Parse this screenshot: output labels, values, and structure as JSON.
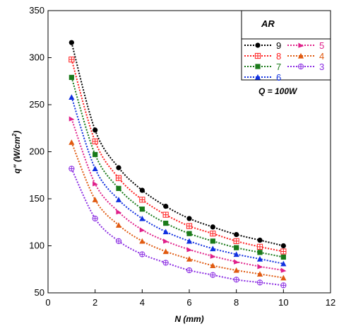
{
  "chart_data": {
    "type": "line",
    "xlabel": "N (mm)",
    "ylabel_main": "q\" (W/cm",
    "ylabel_sup": "2",
    "ylabel_end": ")",
    "xlim": [
      0,
      12
    ],
    "ylim": [
      50,
      350
    ],
    "xticks": [
      "0",
      "2",
      "4",
      "6",
      "8",
      "10",
      "12"
    ],
    "yticks": [
      "50",
      "100",
      "150",
      "200",
      "250",
      "300",
      "350"
    ],
    "grid": false,
    "legend_title": "AR",
    "legend_position": "top-right",
    "annotation": "Q = 100W",
    "x": [
      1,
      2,
      3,
      4,
      5,
      6,
      7,
      8,
      9,
      10
    ],
    "series": [
      {
        "name": "9",
        "color": "#000000",
        "marker": "circle",
        "values": [
          316,
          223,
          183,
          159,
          142,
          129,
          120,
          112,
          106,
          100
        ]
      },
      {
        "name": "8",
        "color": "#ff2020",
        "marker": "square-cross",
        "values": [
          298,
          211,
          172,
          149,
          133,
          121,
          113,
          105,
          99,
          94
        ]
      },
      {
        "name": "7",
        "color": "#1a7a1a",
        "marker": "square",
        "values": [
          279,
          197,
          161,
          139,
          124,
          113,
          105,
          98,
          93,
          88
        ]
      },
      {
        "name": "6",
        "color": "#1030e0",
        "marker": "triangle",
        "values": [
          258,
          182,
          149,
          129,
          115,
          105,
          97,
          91,
          86,
          81
        ]
      },
      {
        "name": "5",
        "color": "#e0208a",
        "marker": "triangle-right",
        "values": [
          235,
          166,
          136,
          117,
          105,
          96,
          89,
          83,
          78,
          74
        ]
      },
      {
        "name": "4",
        "color": "#e05a10",
        "marker": "triangle-filled-dark",
        "values": [
          210,
          149,
          122,
          105,
          94,
          86,
          79,
          74,
          70,
          66
        ]
      },
      {
        "name": "3",
        "color": "#8a2be2",
        "marker": "circle-cross",
        "values": [
          182,
          129,
          105,
          91,
          82,
          74,
          69,
          64,
          61,
          58
        ]
      }
    ]
  }
}
